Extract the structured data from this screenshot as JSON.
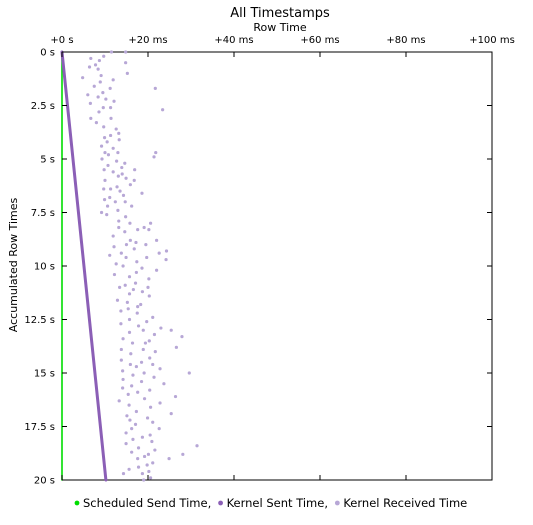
{
  "chart_data": {
    "type": "scatter",
    "title": "All Timestamps",
    "xlabel": "Row Time",
    "ylabel": "Accumulated Row Times",
    "x_axis_position": "top",
    "y_axis_inverted": true,
    "xlim": [
      0,
      100
    ],
    "ylim": [
      0,
      20
    ],
    "x_ticks": [
      {
        "value": 0,
        "label": "+0 s"
      },
      {
        "value": 20,
        "label": "+20 ms"
      },
      {
        "value": 40,
        "label": "+40 ms"
      },
      {
        "value": 60,
        "label": "+60 ms"
      },
      {
        "value": 80,
        "label": "+80 ms"
      },
      {
        "value": 100,
        "label": "+100 ms"
      }
    ],
    "y_ticks": [
      {
        "value": 0,
        "label": "0 s"
      },
      {
        "value": 2.5,
        "label": "2.5 s"
      },
      {
        "value": 5,
        "label": "5 s"
      },
      {
        "value": 7.5,
        "label": "7.5 s"
      },
      {
        "value": 10,
        "label": "10 s"
      },
      {
        "value": 12.5,
        "label": "12.5 s"
      },
      {
        "value": 15,
        "label": "15 s"
      },
      {
        "value": 17.5,
        "label": "17.5 s"
      },
      {
        "value": 20,
        "label": "20 s"
      }
    ],
    "grid": false,
    "legend_position": "bottom",
    "series": [
      {
        "name": "Scheduled Send Time",
        "color": "#00dd00",
        "marker": "line",
        "points": [
          [
            0,
            0
          ],
          [
            0,
            20
          ]
        ]
      },
      {
        "name": "Kernel Sent Time",
        "color": "#8b5fb6",
        "marker": "line",
        "points": [
          [
            0,
            0
          ],
          [
            10.2,
            20
          ]
        ]
      },
      {
        "name": "Kernel Received Time",
        "color": "#b7a7d6",
        "marker": "dot",
        "points": [
          [
            11.5,
            0.0
          ],
          [
            14.8,
            0.0
          ],
          [
            9.7,
            0.2
          ],
          [
            6.7,
            0.3
          ],
          [
            8.7,
            0.4
          ],
          [
            14.8,
            0.5
          ],
          [
            7.8,
            0.6
          ],
          [
            6.4,
            0.7
          ],
          [
            8.4,
            0.8
          ],
          [
            15.2,
            1.0
          ],
          [
            9.1,
            1.1
          ],
          [
            4.8,
            1.2
          ],
          [
            11.9,
            1.3
          ],
          [
            8.9,
            1.4
          ],
          [
            7.5,
            1.6
          ],
          [
            11.2,
            1.7
          ],
          [
            21.7,
            1.7
          ],
          [
            9.5,
            1.9
          ],
          [
            6.0,
            2.0
          ],
          [
            8.4,
            2.1
          ],
          [
            10.2,
            2.2
          ],
          [
            12.1,
            2.3
          ],
          [
            6.6,
            2.4
          ],
          [
            9.6,
            2.6
          ],
          [
            11.3,
            2.6
          ],
          [
            23.4,
            2.7
          ],
          [
            8.6,
            2.8
          ],
          [
            6.7,
            3.1
          ],
          [
            11.4,
            3.1
          ],
          [
            8.0,
            3.3
          ],
          [
            9.7,
            3.5
          ],
          [
            12.6,
            3.6
          ],
          [
            13.2,
            3.8
          ],
          [
            11.3,
            3.9
          ],
          [
            9.9,
            4.0
          ],
          [
            13.3,
            4.1
          ],
          [
            10.5,
            4.2
          ],
          [
            9.2,
            4.4
          ],
          [
            11.9,
            4.5
          ],
          [
            10.0,
            4.7
          ],
          [
            13.0,
            4.7
          ],
          [
            21.8,
            4.7
          ],
          [
            10.8,
            4.8
          ],
          [
            21.4,
            4.9
          ],
          [
            9.3,
            5.0
          ],
          [
            12.7,
            5.1
          ],
          [
            14.6,
            5.2
          ],
          [
            10.7,
            5.3
          ],
          [
            13.9,
            5.4
          ],
          [
            9.8,
            5.5
          ],
          [
            16.9,
            5.5
          ],
          [
            11.9,
            5.6
          ],
          [
            14.0,
            5.7
          ],
          [
            13.1,
            5.8
          ],
          [
            14.9,
            5.9
          ],
          [
            16.8,
            6.0
          ],
          [
            10.0,
            6.0
          ],
          [
            15.9,
            6.2
          ],
          [
            12.8,
            6.3
          ],
          [
            9.7,
            6.4
          ],
          [
            11.3,
            6.4
          ],
          [
            13.5,
            6.5
          ],
          [
            18.6,
            6.6
          ],
          [
            14.3,
            6.7
          ],
          [
            11.1,
            6.8
          ],
          [
            9.9,
            6.9
          ],
          [
            14.7,
            7.0
          ],
          [
            12.4,
            7.0
          ],
          [
            10.6,
            7.2
          ],
          [
            16.2,
            7.2
          ],
          [
            13.0,
            7.4
          ],
          [
            9.2,
            7.5
          ],
          [
            10.4,
            7.6
          ],
          [
            14.8,
            7.7
          ],
          [
            13.2,
            7.9
          ],
          [
            15.8,
            8.0
          ],
          [
            20.6,
            8.0
          ],
          [
            13.2,
            8.2
          ],
          [
            19.1,
            8.2
          ],
          [
            20.2,
            8.3
          ],
          [
            17.6,
            8.3
          ],
          [
            14.6,
            8.4
          ],
          [
            11.9,
            8.6
          ],
          [
            15.9,
            8.8
          ],
          [
            22.0,
            8.8
          ],
          [
            17.2,
            8.9
          ],
          [
            15.0,
            9.0
          ],
          [
            19.5,
            9.0
          ],
          [
            12.1,
            9.1
          ],
          [
            16.8,
            9.2
          ],
          [
            24.3,
            9.3
          ],
          [
            13.8,
            9.4
          ],
          [
            22.6,
            9.4
          ],
          [
            11.1,
            9.5
          ],
          [
            14.9,
            9.6
          ],
          [
            19.7,
            9.6
          ],
          [
            24.2,
            9.7
          ],
          [
            17.4,
            9.8
          ],
          [
            12.6,
            9.9
          ],
          [
            14.2,
            10.0
          ],
          [
            18.6,
            10.1
          ],
          [
            22.0,
            10.2
          ],
          [
            17.3,
            10.3
          ],
          [
            12.2,
            10.4
          ],
          [
            15.7,
            10.5
          ],
          [
            20.2,
            10.6
          ],
          [
            17.1,
            10.8
          ],
          [
            14.7,
            10.9
          ],
          [
            13.4,
            11.0
          ],
          [
            20.0,
            11.0
          ],
          [
            16.6,
            11.1
          ],
          [
            18.7,
            11.2
          ],
          [
            15.7,
            11.3
          ],
          [
            20.3,
            11.4
          ],
          [
            12.9,
            11.6
          ],
          [
            15.2,
            11.7
          ],
          [
            18.3,
            11.8
          ],
          [
            17.6,
            11.9
          ],
          [
            15.4,
            12.0
          ],
          [
            13.7,
            12.1
          ],
          [
            17.5,
            12.2
          ],
          [
            21.1,
            12.4
          ],
          [
            15.7,
            12.5
          ],
          [
            19.7,
            12.6
          ],
          [
            13.7,
            12.7
          ],
          [
            17.8,
            12.8
          ],
          [
            23.0,
            12.9
          ],
          [
            25.4,
            13.0
          ],
          [
            18.9,
            13.0
          ],
          [
            15.7,
            13.1
          ],
          [
            21.5,
            13.2
          ],
          [
            27.9,
            13.3
          ],
          [
            14.2,
            13.4
          ],
          [
            20.3,
            13.5
          ],
          [
            16.4,
            13.6
          ],
          [
            19.4,
            13.6
          ],
          [
            26.6,
            13.8
          ],
          [
            13.8,
            13.9
          ],
          [
            18.9,
            13.9
          ],
          [
            21.7,
            14.0
          ],
          [
            16.0,
            14.1
          ],
          [
            20.4,
            14.3
          ],
          [
            13.8,
            14.4
          ],
          [
            18.5,
            14.5
          ],
          [
            15.9,
            14.6
          ],
          [
            21.1,
            14.6
          ],
          [
            17.3,
            14.7
          ],
          [
            22.8,
            14.8
          ],
          [
            14.1,
            14.9
          ],
          [
            19.1,
            15.0
          ],
          [
            29.6,
            15.0
          ],
          [
            16.5,
            15.1
          ],
          [
            21.4,
            15.2
          ],
          [
            14.2,
            15.3
          ],
          [
            18.5,
            15.4
          ],
          [
            23.7,
            15.5
          ],
          [
            16.2,
            15.6
          ],
          [
            14.1,
            15.7
          ],
          [
            20.4,
            15.8
          ],
          [
            17.6,
            15.9
          ],
          [
            15.4,
            16.0
          ],
          [
            26.4,
            16.1
          ],
          [
            19.2,
            16.2
          ],
          [
            13.3,
            16.3
          ],
          [
            22.8,
            16.4
          ],
          [
            15.6,
            16.5
          ],
          [
            20.6,
            16.6
          ],
          [
            17.3,
            16.8
          ],
          [
            25.4,
            16.9
          ],
          [
            15.1,
            17.0
          ],
          [
            19.9,
            17.1
          ],
          [
            15.8,
            17.2
          ],
          [
            21.1,
            17.3
          ],
          [
            17.1,
            17.4
          ],
          [
            22.6,
            17.6
          ],
          [
            16.2,
            17.6
          ],
          [
            14.9,
            17.8
          ],
          [
            20.5,
            17.9
          ],
          [
            18.7,
            18.0
          ],
          [
            16.5,
            18.1
          ],
          [
            20.9,
            18.2
          ],
          [
            14.9,
            18.3
          ],
          [
            31.4,
            18.4
          ],
          [
            17.8,
            18.5
          ],
          [
            21.6,
            18.6
          ],
          [
            16.2,
            18.7
          ],
          [
            20.1,
            18.8
          ],
          [
            28.1,
            18.8
          ],
          [
            19.2,
            18.9
          ],
          [
            17.6,
            19.0
          ],
          [
            24.9,
            19.0
          ],
          [
            21.1,
            19.2
          ],
          [
            19.8,
            19.3
          ],
          [
            17.8,
            19.4
          ],
          [
            15.6,
            19.5
          ],
          [
            20.2,
            19.6
          ],
          [
            18.7,
            19.7
          ],
          [
            14.3,
            19.7
          ],
          [
            20.6,
            19.9
          ],
          [
            19.0,
            20.0
          ]
        ]
      }
    ]
  }
}
